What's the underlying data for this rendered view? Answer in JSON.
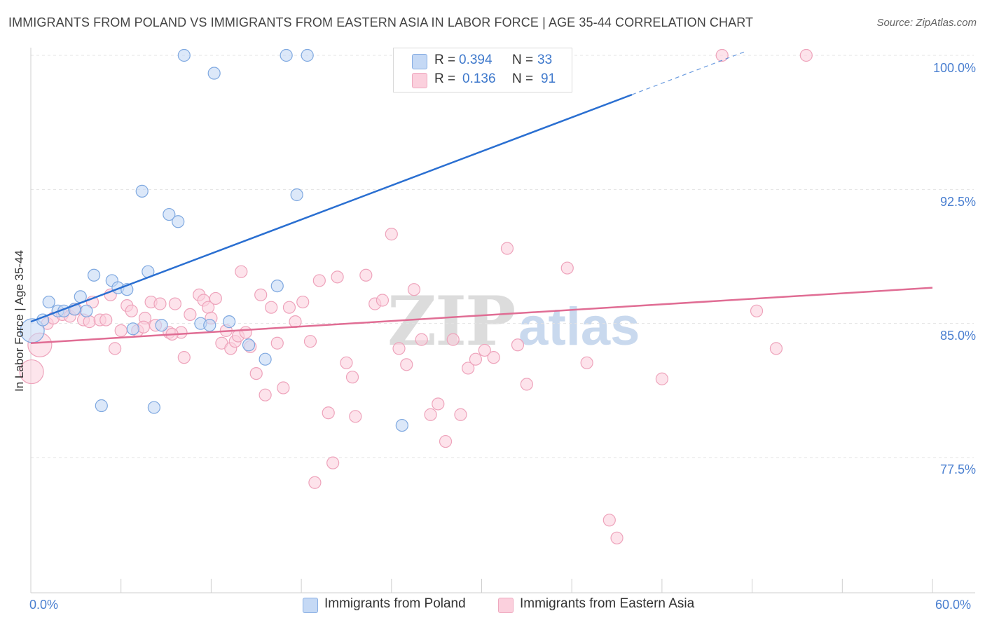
{
  "header": {
    "title": "IMMIGRANTS FROM POLAND VS IMMIGRANTS FROM EASTERN ASIA IN LABOR FORCE | AGE 35-44 CORRELATION CHART",
    "source": "Source: ZipAtlas.com"
  },
  "watermark": {
    "zip": "ZIP",
    "atlas": "atlas"
  },
  "stats_legend": {
    "rows": [
      {
        "r_label": "R =",
        "r_value": "0.394",
        "n_label": "N =",
        "n_value": "33",
        "color": "#4a86d6"
      },
      {
        "r_label": "R =",
        "r_value": "0.136",
        "n_label": "N =",
        "n_value": "91",
        "color": "#e8769a"
      }
    ]
  },
  "axes": {
    "ylabel": "In Labor Force | Age 35-44",
    "y_ticks": [
      "100.0%",
      "92.5%",
      "85.0%",
      "77.5%"
    ],
    "x_ticks": [
      "0.0%",
      "60.0%"
    ]
  },
  "legend": {
    "items": [
      "Immigrants from Poland",
      "Immigrants from Eastern Asia"
    ]
  },
  "colors": {
    "blue_fill": "#c5d9f5",
    "blue_stroke": "#7ea8e0",
    "blue_line": "#2a6fd1",
    "pink_fill": "#fbd0dd",
    "pink_stroke": "#eea3bb",
    "pink_line": "#e06d94",
    "grid": "#e3e3e3",
    "tick_text": "#4a7fd0"
  },
  "chart_data": {
    "type": "scatter",
    "title": "IMMIGRANTS FROM POLAND VS IMMIGRANTS FROM EASTERN ASIA IN LABOR FORCE | AGE 35-44 CORRELATION CHART",
    "xlabel": "",
    "ylabel": "In Labor Force | Age 35-44",
    "xlim": [
      0,
      60
    ],
    "ylim": [
      70.5,
      100.7
    ],
    "y_gridlines": [
      100.0,
      92.5,
      85.0,
      77.5
    ],
    "grid": true,
    "legend_position": "bottom-center",
    "series": [
      {
        "name": "Immigrants from Poland",
        "r": 0.394,
        "n": 33,
        "trend": {
          "x": [
            0,
            40
          ],
          "y": [
            85.1,
            97.8
          ],
          "extended_to": {
            "x": 47.5,
            "y": 100.2
          }
        },
        "points": [
          {
            "x": 0.1,
            "y": 84.6,
            "big": true
          },
          {
            "x": 0.8,
            "y": 85.2
          },
          {
            "x": 1.2,
            "y": 86.2
          },
          {
            "x": 1.8,
            "y": 85.7
          },
          {
            "x": 2.2,
            "y": 85.7
          },
          {
            "x": 2.9,
            "y": 85.8
          },
          {
            "x": 3.3,
            "y": 86.5
          },
          {
            "x": 3.7,
            "y": 85.7
          },
          {
            "x": 4.2,
            "y": 87.7
          },
          {
            "x": 4.7,
            "y": 80.4
          },
          {
            "x": 5.4,
            "y": 87.4
          },
          {
            "x": 5.8,
            "y": 87.0
          },
          {
            "x": 6.4,
            "y": 86.9
          },
          {
            "x": 6.8,
            "y": 84.7
          },
          {
            "x": 7.4,
            "y": 92.4
          },
          {
            "x": 7.8,
            "y": 87.9
          },
          {
            "x": 8.2,
            "y": 80.3
          },
          {
            "x": 8.7,
            "y": 84.9
          },
          {
            "x": 9.2,
            "y": 91.1
          },
          {
            "x": 9.8,
            "y": 90.7
          },
          {
            "x": 10.2,
            "y": 100.0
          },
          {
            "x": 11.3,
            "y": 85.0
          },
          {
            "x": 11.9,
            "y": 84.9
          },
          {
            "x": 12.2,
            "y": 99.0
          },
          {
            "x": 13.2,
            "y": 85.1
          },
          {
            "x": 14.5,
            "y": 83.8
          },
          {
            "x": 15.6,
            "y": 83.0
          },
          {
            "x": 16.4,
            "y": 87.1
          },
          {
            "x": 17.0,
            "y": 100.0
          },
          {
            "x": 17.7,
            "y": 92.2
          },
          {
            "x": 18.4,
            "y": 100.0
          },
          {
            "x": 24.7,
            "y": 79.3
          },
          {
            "x": 32.2,
            "y": 100.0
          }
        ]
      },
      {
        "name": "Immigrants from Eastern Asia",
        "r": 0.136,
        "n": 91,
        "trend": {
          "x": [
            0,
            60
          ],
          "y": [
            83.9,
            87.0
          ]
        },
        "points": [
          {
            "x": 0.05,
            "y": 82.3,
            "big": true
          },
          {
            "x": 0.6,
            "y": 83.8,
            "big": true
          },
          {
            "x": 1.1,
            "y": 85.0
          },
          {
            "x": 1.5,
            "y": 85.3
          },
          {
            "x": 2.1,
            "y": 85.5
          },
          {
            "x": 2.6,
            "y": 85.4
          },
          {
            "x": 3.0,
            "y": 85.8
          },
          {
            "x": 3.5,
            "y": 85.2
          },
          {
            "x": 3.9,
            "y": 85.1
          },
          {
            "x": 4.1,
            "y": 86.2
          },
          {
            "x": 4.6,
            "y": 85.2
          },
          {
            "x": 5.0,
            "y": 85.2
          },
          {
            "x": 5.3,
            "y": 86.6
          },
          {
            "x": 5.6,
            "y": 83.6
          },
          {
            "x": 6.0,
            "y": 84.6
          },
          {
            "x": 6.4,
            "y": 86.0
          },
          {
            "x": 6.7,
            "y": 85.7
          },
          {
            "x": 7.1,
            "y": 84.6
          },
          {
            "x": 7.6,
            "y": 85.3
          },
          {
            "x": 8.0,
            "y": 86.2
          },
          {
            "x": 8.3,
            "y": 84.9
          },
          {
            "x": 8.6,
            "y": 86.1
          },
          {
            "x": 9.2,
            "y": 84.5
          },
          {
            "x": 9.6,
            "y": 86.1
          },
          {
            "x": 10.0,
            "y": 84.5
          },
          {
            "x": 10.2,
            "y": 83.1
          },
          {
            "x": 10.6,
            "y": 85.5
          },
          {
            "x": 11.2,
            "y": 86.6
          },
          {
            "x": 11.5,
            "y": 86.3
          },
          {
            "x": 11.8,
            "y": 85.9
          },
          {
            "x": 12.0,
            "y": 85.3
          },
          {
            "x": 12.3,
            "y": 86.4
          },
          {
            "x": 12.7,
            "y": 83.9
          },
          {
            "x": 13.0,
            "y": 84.6
          },
          {
            "x": 13.3,
            "y": 83.6
          },
          {
            "x": 13.6,
            "y": 84.0
          },
          {
            "x": 13.8,
            "y": 84.3
          },
          {
            "x": 14.0,
            "y": 87.9
          },
          {
            "x": 14.3,
            "y": 84.5
          },
          {
            "x": 14.6,
            "y": 83.7
          },
          {
            "x": 15.0,
            "y": 82.2
          },
          {
            "x": 15.3,
            "y": 86.6
          },
          {
            "x": 15.6,
            "y": 81.0
          },
          {
            "x": 16.0,
            "y": 85.9
          },
          {
            "x": 16.4,
            "y": 83.9
          },
          {
            "x": 16.8,
            "y": 81.4
          },
          {
            "x": 17.2,
            "y": 85.9
          },
          {
            "x": 17.6,
            "y": 85.1
          },
          {
            "x": 18.1,
            "y": 86.2
          },
          {
            "x": 18.6,
            "y": 84.0
          },
          {
            "x": 19.2,
            "y": 87.4
          },
          {
            "x": 19.8,
            "y": 80.0
          },
          {
            "x": 20.4,
            "y": 87.6
          },
          {
            "x": 21.0,
            "y": 82.8
          },
          {
            "x": 21.6,
            "y": 79.8
          },
          {
            "x": 22.3,
            "y": 87.7
          },
          {
            "x": 22.9,
            "y": 86.1
          },
          {
            "x": 23.4,
            "y": 86.3
          },
          {
            "x": 24.0,
            "y": 90.0
          },
          {
            "x": 24.5,
            "y": 83.6
          },
          {
            "x": 25.0,
            "y": 82.7
          },
          {
            "x": 25.5,
            "y": 86.9
          },
          {
            "x": 26.0,
            "y": 84.1
          },
          {
            "x": 26.6,
            "y": 79.9
          },
          {
            "x": 27.1,
            "y": 80.5
          },
          {
            "x": 27.6,
            "y": 78.4
          },
          {
            "x": 28.1,
            "y": 84.1
          },
          {
            "x": 28.6,
            "y": 79.9
          },
          {
            "x": 29.1,
            "y": 82.5
          },
          {
            "x": 29.6,
            "y": 83.0
          },
          {
            "x": 30.2,
            "y": 83.5
          },
          {
            "x": 30.8,
            "y": 83.1
          },
          {
            "x": 31.7,
            "y": 89.2
          },
          {
            "x": 32.4,
            "y": 83.8
          },
          {
            "x": 33.0,
            "y": 81.6
          },
          {
            "x": 33.6,
            "y": 100.0
          },
          {
            "x": 35.7,
            "y": 88.1
          },
          {
            "x": 37.0,
            "y": 82.8
          },
          {
            "x": 38.5,
            "y": 74.0
          },
          {
            "x": 39.0,
            "y": 73.0
          },
          {
            "x": 42.0,
            "y": 81.9
          },
          {
            "x": 46.0,
            "y": 100.0
          },
          {
            "x": 48.3,
            "y": 85.7
          },
          {
            "x": 49.6,
            "y": 83.6
          },
          {
            "x": 51.6,
            "y": 100.0
          },
          {
            "x": 20.1,
            "y": 77.2
          },
          {
            "x": 18.9,
            "y": 76.1
          },
          {
            "x": 21.4,
            "y": 82.0
          },
          {
            "x": 34.8,
            "y": 100.0
          },
          {
            "x": 7.5,
            "y": 84.8
          },
          {
            "x": 9.4,
            "y": 84.4
          }
        ]
      }
    ]
  }
}
